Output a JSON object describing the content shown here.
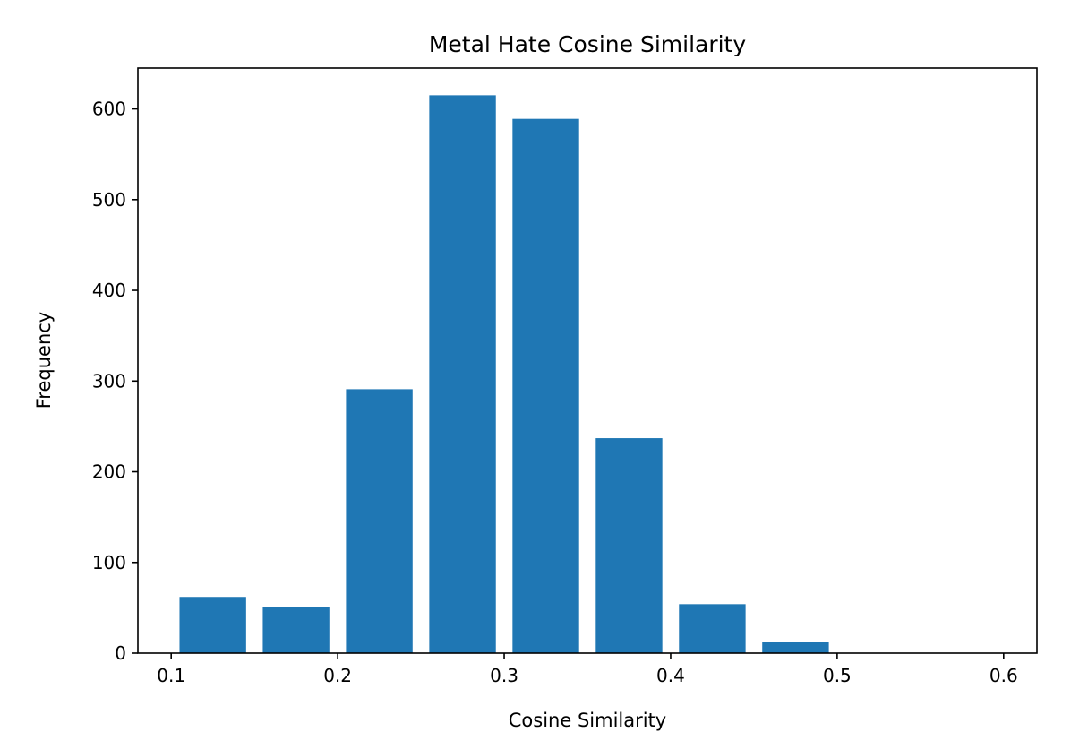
{
  "chart_data": {
    "type": "bar",
    "title": "Metal Hate Cosine Similarity",
    "xlabel": "Cosine Similarity",
    "ylabel": "Frequency",
    "bin_edges": [
      0.1,
      0.15,
      0.2,
      0.25,
      0.3,
      0.35,
      0.4,
      0.45,
      0.5,
      0.55,
      0.6
    ],
    "values": [
      62,
      51,
      291,
      615,
      589,
      237,
      54,
      12,
      0,
      0
    ],
    "rwidth": 0.8,
    "xlim": [
      0.08,
      0.62
    ],
    "ylim": [
      0,
      645
    ],
    "xticks": [
      0.1,
      0.2,
      0.3,
      0.4,
      0.5,
      0.6
    ],
    "xtick_labels": [
      "0.1",
      "0.2",
      "0.3",
      "0.4",
      "0.5",
      "0.6"
    ],
    "yticks": [
      0,
      100,
      200,
      300,
      400,
      500,
      600
    ],
    "ytick_labels": [
      "0",
      "100",
      "200",
      "300",
      "400",
      "500",
      "600"
    ],
    "grid": false,
    "color": "#1f77b4"
  }
}
